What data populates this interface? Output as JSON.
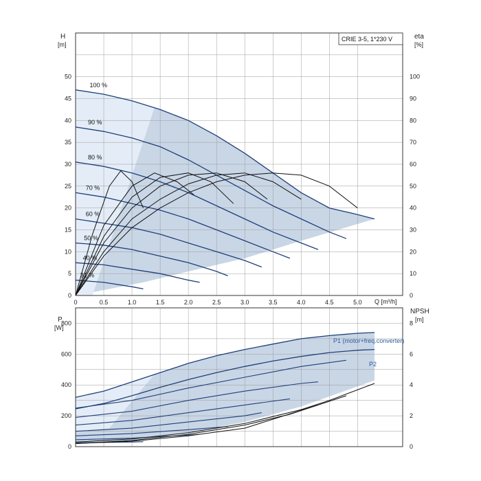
{
  "legend_box": "CRIE 3-5, 1*230 V",
  "colors": {
    "curve": "#1f3f78",
    "thin": "#111111",
    "grid": "#9a9a9a",
    "area": "#c9d6e6",
    "area_light": "#e4edf7",
    "label": "#2e5a9a"
  },
  "chart_data": [
    {
      "type": "line",
      "panel": "H-Q and efficiency",
      "xlabel": "Q [m³/h]",
      "ylabel_left": "H",
      "ylabel_left_unit": "[m]",
      "ylabel_right": "eta",
      "ylabel_right_unit": "[%]",
      "xlim": [
        0,
        5.8
      ],
      "ylim_left": [
        0,
        60
      ],
      "ylim_right": [
        0,
        120
      ],
      "grid": true,
      "x_ticks": [
        "0",
        "0.5",
        "1.0",
        "1.5",
        "2.0",
        "2.5",
        "3.0",
        "3.5",
        "4.0",
        "4.5",
        "5.0"
      ],
      "x_tick_values": [
        0,
        0.5,
        1.0,
        1.5,
        2.0,
        2.5,
        3.0,
        3.5,
        4.0,
        4.5,
        5.0
      ],
      "y_left_ticks": [
        "0",
        "5",
        "10",
        "15",
        "20",
        "25",
        "30",
        "35",
        "40",
        "45",
        "50"
      ],
      "y_left_tick_values": [
        0,
        5,
        10,
        15,
        20,
        25,
        30,
        35,
        40,
        45,
        50
      ],
      "y_right_ticks": [
        "0",
        "10",
        "20",
        "30",
        "40",
        "50",
        "60",
        "70",
        "80",
        "90",
        "100"
      ],
      "y_right_tick_values": [
        0,
        10,
        20,
        30,
        40,
        50,
        60,
        70,
        80,
        90,
        100
      ],
      "speed_labels": [
        "100 %",
        "90 %",
        "80 %",
        "70 %",
        "60 %",
        "50 %",
        "40 %",
        "31 %"
      ],
      "series": [
        {
          "name": "100 %",
          "x": [
            0,
            0.5,
            1.0,
            1.5,
            2.0,
            2.5,
            3.0,
            3.5,
            4.0,
            4.5,
            5.0,
            5.3
          ],
          "values": [
            47,
            46,
            44.5,
            42.5,
            40,
            36.5,
            32.5,
            28,
            23.5,
            20,
            18.5,
            17.5
          ]
        },
        {
          "name": "90 %",
          "x": [
            0,
            0.5,
            1.0,
            1.5,
            2.0,
            2.5,
            3.0,
            3.5,
            4.0,
            4.5,
            4.8
          ],
          "values": [
            38.5,
            37.5,
            36,
            34,
            31,
            27.5,
            24,
            20.5,
            17.5,
            14.5,
            13
          ]
        },
        {
          "name": "80 %",
          "x": [
            0,
            0.5,
            1.0,
            1.5,
            2.0,
            2.5,
            3.0,
            3.5,
            4.0,
            4.3
          ],
          "values": [
            30.5,
            29.5,
            28,
            26,
            23.5,
            20.5,
            17.5,
            14.5,
            12,
            10.5
          ]
        },
        {
          "name": "70 %",
          "x": [
            0,
            0.5,
            1.0,
            1.5,
            2.0,
            2.5,
            3.0,
            3.5,
            3.8
          ],
          "values": [
            23.5,
            22.5,
            21,
            19.5,
            17.5,
            15,
            12.5,
            10,
            8.5
          ]
        },
        {
          "name": "60 %",
          "x": [
            0,
            0.5,
            1.0,
            1.5,
            2.0,
            2.5,
            3.0,
            3.3
          ],
          "values": [
            17.5,
            16.5,
            15.5,
            14,
            12,
            10,
            8,
            6.5
          ]
        },
        {
          "name": "50 %",
          "x": [
            0,
            0.5,
            1.0,
            1.5,
            2.0,
            2.5,
            2.7
          ],
          "values": [
            12,
            11.5,
            10.5,
            9,
            7.5,
            5.5,
            4.5
          ]
        },
        {
          "name": "40 %",
          "x": [
            0,
            0.5,
            1.0,
            1.5,
            2.0,
            2.2
          ],
          "values": [
            7.5,
            7,
            6,
            5,
            3.5,
            3
          ]
        },
        {
          "name": "31 %",
          "x": [
            0,
            0.5,
            1.0,
            1.2
          ],
          "values": [
            3.5,
            3,
            2,
            1.5
          ]
        }
      ],
      "eta_series": [
        {
          "x": [
            0,
            0.3,
            0.6,
            0.8,
            1.0,
            1.2
          ],
          "values": [
            0,
            28,
            50,
            57,
            52,
            40
          ]
        },
        {
          "x": [
            0,
            0.5,
            1.0,
            1.4,
            1.8,
            2.1
          ],
          "values": [
            0,
            32,
            50,
            56,
            52,
            46
          ]
        },
        {
          "x": [
            0,
            0.5,
            1.0,
            1.5,
            2.0,
            2.4,
            2.8
          ],
          "values": [
            0,
            27,
            45,
            54,
            56,
            52,
            42
          ]
        },
        {
          "x": [
            0,
            0.5,
            1.0,
            1.5,
            2.0,
            2.5,
            3.0,
            3.4
          ],
          "values": [
            0,
            24,
            40,
            50,
            55,
            56,
            52,
            44
          ]
        },
        {
          "x": [
            0,
            0.5,
            1.0,
            1.5,
            2.0,
            2.5,
            3.0,
            3.5,
            4.0
          ],
          "values": [
            0,
            20,
            35,
            44,
            51,
            55,
            56,
            52,
            44
          ]
        },
        {
          "x": [
            0,
            0.5,
            1.0,
            1.5,
            2.0,
            2.5,
            3.0,
            3.5,
            4.0,
            4.5,
            5.0
          ],
          "values": [
            0,
            18,
            31,
            40,
            47,
            52,
            55,
            56,
            55,
            50,
            40
          ]
        }
      ]
    },
    {
      "type": "line",
      "panel": "Power and NPSH",
      "ylabel_left": "P",
      "ylabel_left_unit": "[W]",
      "ylabel_right": "NPSH",
      "ylabel_right_unit": "[m]",
      "xlim": [
        0,
        5.8
      ],
      "ylim_left": [
        0,
        900
      ],
      "ylim_right": [
        0,
        9
      ],
      "grid": true,
      "y_left_ticks": [
        "0",
        "200",
        "400",
        "600",
        "800"
      ],
      "y_left_tick_values": [
        0,
        200,
        400,
        600,
        800
      ],
      "y_right_ticks": [
        "0",
        "2",
        "4",
        "6",
        "8"
      ],
      "y_right_tick_values": [
        0,
        2,
        4,
        6,
        8
      ],
      "series_labels": [
        "P1 (motor+freq.converter)",
        "P2"
      ],
      "series": [
        {
          "name": "P1 (motor+freq.converter)",
          "x": [
            0,
            0.5,
            1.0,
            1.5,
            2.0,
            2.5,
            3.0,
            3.5,
            4.0,
            4.5,
            5.0,
            5.3
          ],
          "values": [
            320,
            360,
            420,
            480,
            540,
            590,
            630,
            665,
            700,
            720,
            735,
            740
          ]
        },
        {
          "name": "P2",
          "x": [
            0,
            0.5,
            1.0,
            1.5,
            2.0,
            2.5,
            3.0,
            3.5,
            4.0,
            4.5,
            5.0,
            5.3
          ],
          "values": [
            245,
            280,
            330,
            385,
            435,
            480,
            520,
            555,
            585,
            610,
            625,
            630
          ]
        }
      ],
      "speed_series_p1": [
        {
          "x": [
            0,
            1,
            2,
            3,
            4,
            4.8
          ],
          "values": [
            250,
            300,
            380,
            450,
            520,
            560
          ]
        },
        {
          "x": [
            0,
            1,
            2,
            3,
            4,
            4.3
          ],
          "values": [
            190,
            230,
            300,
            360,
            410,
            420
          ]
        },
        {
          "x": [
            0,
            1,
            2,
            3,
            3.8
          ],
          "values": [
            140,
            170,
            220,
            270,
            310
          ]
        },
        {
          "x": [
            0,
            1,
            2,
            3,
            3.3
          ],
          "values": [
            100,
            120,
            160,
            200,
            220
          ]
        },
        {
          "x": [
            0,
            1,
            2,
            2.7
          ],
          "values": [
            70,
            85,
            110,
            130
          ]
        },
        {
          "x": [
            0,
            1,
            2,
            2.2
          ],
          "values": [
            45,
            55,
            75,
            80
          ]
        },
        {
          "x": [
            0,
            1,
            1.2
          ],
          "values": [
            25,
            30,
            32
          ]
        }
      ],
      "npsh_series": [
        {
          "x": [
            0,
            1,
            2,
            3,
            4,
            4.5,
            5.3
          ],
          "values": [
            0.3,
            0.5,
            0.9,
            1.5,
            2.4,
            3.0,
            4.1
          ]
        },
        {
          "x": [
            0,
            1,
            2,
            3,
            3.8,
            4.8
          ],
          "values": [
            0.2,
            0.4,
            0.8,
            1.4,
            2.1,
            3.3
          ]
        },
        {
          "x": [
            0,
            1,
            2,
            3,
            4.3
          ],
          "values": [
            0.2,
            0.35,
            0.7,
            1.2,
            2.7
          ]
        }
      ]
    }
  ]
}
